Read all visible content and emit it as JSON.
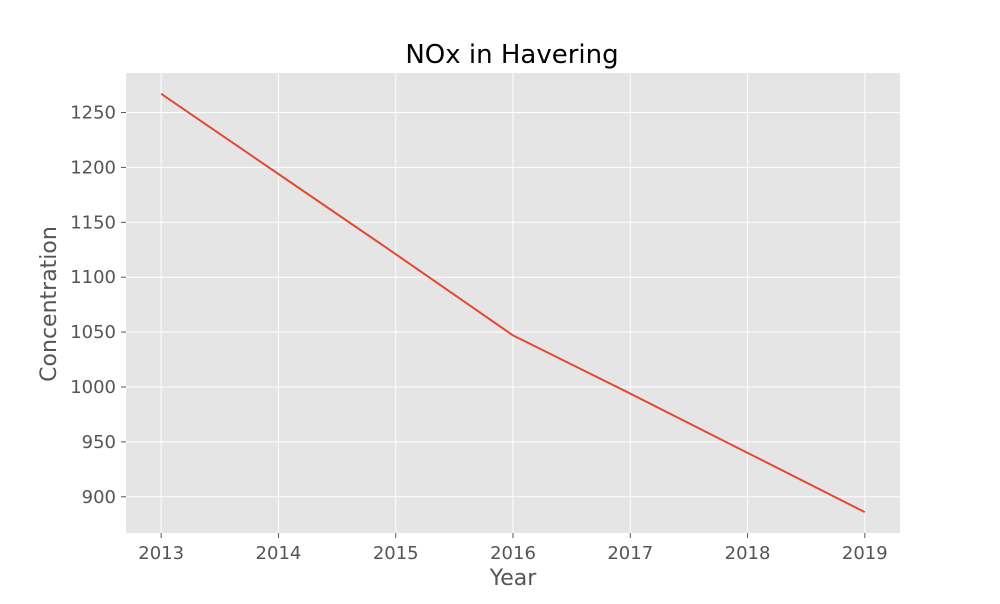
{
  "chart_data": {
    "type": "line",
    "title": "NOx in Havering",
    "xlabel": "Year",
    "ylabel": "Concentration",
    "x": [
      2013,
      2014,
      2015,
      2016,
      2017,
      2018,
      2019
    ],
    "series": [
      {
        "values": [
          1267,
          1194,
          1121,
          1047,
          994,
          940,
          886
        ],
        "color": "#e24a33"
      }
    ],
    "xlim": [
      2012.7,
      2019.3
    ],
    "ylim": [
      867,
      1286
    ],
    "x_ticks": [
      2013,
      2014,
      2015,
      2016,
      2017,
      2018,
      2019
    ],
    "y_ticks": [
      900,
      950,
      1000,
      1050,
      1100,
      1150,
      1200,
      1250
    ],
    "grid": true,
    "legend": "none",
    "colors": {
      "plot_background": "#e5e5e5",
      "grid": "#ffffff",
      "line": "#e24a33",
      "tick_text": "#555555",
      "title_text": "#000000"
    }
  }
}
